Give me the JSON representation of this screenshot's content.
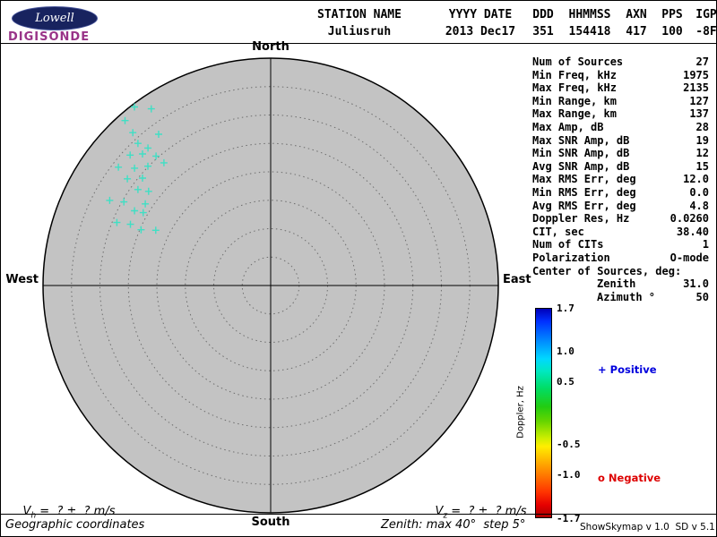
{
  "logo": {
    "brand": "Lowell",
    "product": "DIGISONDE"
  },
  "header": {
    "columns": [
      {
        "label": "STATION NAME",
        "value": "Juliusruh"
      },
      {
        "label": "YYYY DATE",
        "value": "2013 Dec17"
      },
      {
        "label": "DDD",
        "value": "351"
      },
      {
        "label": "HHMMSS",
        "value": "154418"
      },
      {
        "label": "AXN",
        "value": "417"
      },
      {
        "label": "PPS",
        "value": "100"
      },
      {
        "label": "IGP",
        "value": "-8F"
      }
    ]
  },
  "compass": {
    "north": "North",
    "south": "South",
    "east": "East",
    "west": "West"
  },
  "stats": [
    {
      "label": "Num of Sources",
      "value": "27"
    },
    {
      "label": "Min Freq, kHz",
      "value": "1975"
    },
    {
      "label": "Max Freq, kHz",
      "value": "2135"
    },
    {
      "label": "Min Range, km",
      "value": "127"
    },
    {
      "label": "Max Range, km",
      "value": "137"
    },
    {
      "label": "Max Amp, dB",
      "value": "28"
    },
    {
      "label": "Max SNR Amp, dB",
      "value": "19"
    },
    {
      "label": "Min SNR Amp, dB",
      "value": "12"
    },
    {
      "label": "Avg SNR Amp, dB",
      "value": "15"
    },
    {
      "label": "Max RMS Err, deg",
      "value": "12.0"
    },
    {
      "label": "Min RMS Err, deg",
      "value": "0.0"
    },
    {
      "label": "Avg RMS Err, deg",
      "value": "4.8"
    },
    {
      "label": "Doppler Res, Hz",
      "value": "0.0260"
    },
    {
      "label": "CIT, sec",
      "value": "38.40"
    },
    {
      "label": "Num of CITs",
      "value": "1"
    },
    {
      "label": "Polarization",
      "value": "O-mode"
    },
    {
      "label": "Center of Sources, deg:",
      "value": ""
    },
    {
      "label": "Zenith",
      "value": "31.0",
      "indent": true
    },
    {
      "label": "Azimuth °",
      "value": "50",
      "indent": true
    }
  ],
  "legend": {
    "positive_marker": "+",
    "positive_label": " Positive",
    "negative_marker": "o",
    "negative_label": " Negative"
  },
  "footer": {
    "vh_sym": "V",
    "vh_sub": "h",
    "vh_text": " =  ? ±  ? m/s",
    "vz_sym": "V",
    "vz_sub": "z",
    "vz_text": " =  ? ±  ? m/s",
    "coordinates": "Geographic coordinates",
    "zenith_note": "Zenith: max 40°  step 5°",
    "version": "ShowSkymap v 1.0  SD v 5.1"
  },
  "colors": {
    "plot_fill": "#c3c3c3",
    "marker": "#3fdfc4",
    "positive": "#0000dd",
    "negative": "#dd0000",
    "logo_background": "#18235f",
    "logo_product": "#993388"
  },
  "chart_data": {
    "type": "scatter",
    "projection": "polar",
    "zenith_max_deg": 40,
    "zenith_step_deg": 5,
    "marker": "+",
    "marker_color": "#3fdfc4",
    "num_sources": 27,
    "center_of_sources": {
      "zenith_deg": 31.0,
      "azimuth_deg": 50
    },
    "points": [
      {
        "zenith": 39.5,
        "azimuth": 322.7
      },
      {
        "zenith": 37.5,
        "azimuth": 326.0
      },
      {
        "zenith": 38.7,
        "azimuth": 318.6
      },
      {
        "zenith": 36.2,
        "azimuth": 318.0
      },
      {
        "zenith": 33.1,
        "azimuth": 323.5
      },
      {
        "zenith": 34.2,
        "azimuth": 317.0
      },
      {
        "zenith": 32.4,
        "azimuth": 318.3
      },
      {
        "zenith": 33.7,
        "azimuth": 312.9
      },
      {
        "zenith": 32.3,
        "azimuth": 315.8
      },
      {
        "zenith": 30.4,
        "azimuth": 318.5
      },
      {
        "zenith": 33.9,
        "azimuth": 307.9
      },
      {
        "zenith": 31.6,
        "azimuth": 310.8
      },
      {
        "zenith": 30.1,
        "azimuth": 314.2
      },
      {
        "zenith": 28.6,
        "azimuth": 319.0
      },
      {
        "zenith": 31.4,
        "azimuth": 306.7
      },
      {
        "zenith": 29.4,
        "azimuth": 310.0
      },
      {
        "zenith": 28.8,
        "azimuth": 305.9
      },
      {
        "zenith": 27.1,
        "azimuth": 307.7
      },
      {
        "zenith": 32.0,
        "azimuth": 297.9
      },
      {
        "zenith": 29.7,
        "azimuth": 299.7
      },
      {
        "zenith": 27.3,
        "azimuth": 298.8
      },
      {
        "zenith": 25.8,
        "azimuth": 299.8
      },
      {
        "zenith": 26.3,
        "azimuth": 303.1
      },
      {
        "zenith": 29.2,
        "azimuth": 292.3
      },
      {
        "zenith": 26.9,
        "azimuth": 293.6
      },
      {
        "zenith": 24.8,
        "azimuth": 293.3
      },
      {
        "zenith": 22.4,
        "azimuth": 295.7
      }
    ],
    "colorbar": {
      "label": "Doppler, Hz",
      "min": -1.7,
      "max": 1.7,
      "tick_labels": [
        "1.7",
        "1.0",
        "0.5",
        "-0.5",
        "-1.0",
        "-1.7"
      ],
      "gradient": [
        [
          "#0000b8",
          0
        ],
        [
          "#0030ff",
          6
        ],
        [
          "#0090ff",
          16
        ],
        [
          "#00d8ff",
          24
        ],
        [
          "#00e8c0",
          30
        ],
        [
          "#00dd66",
          38
        ],
        [
          "#22cc11",
          47
        ],
        [
          "#66d500",
          54
        ],
        [
          "#ccee00",
          62
        ],
        [
          "#ffee00",
          66
        ],
        [
          "#ffaa00",
          74
        ],
        [
          "#ff7700",
          80
        ],
        [
          "#ff3300",
          88
        ],
        [
          "#e60000",
          94
        ],
        [
          "#aa0000",
          100
        ]
      ]
    },
    "legend_position": "right"
  }
}
